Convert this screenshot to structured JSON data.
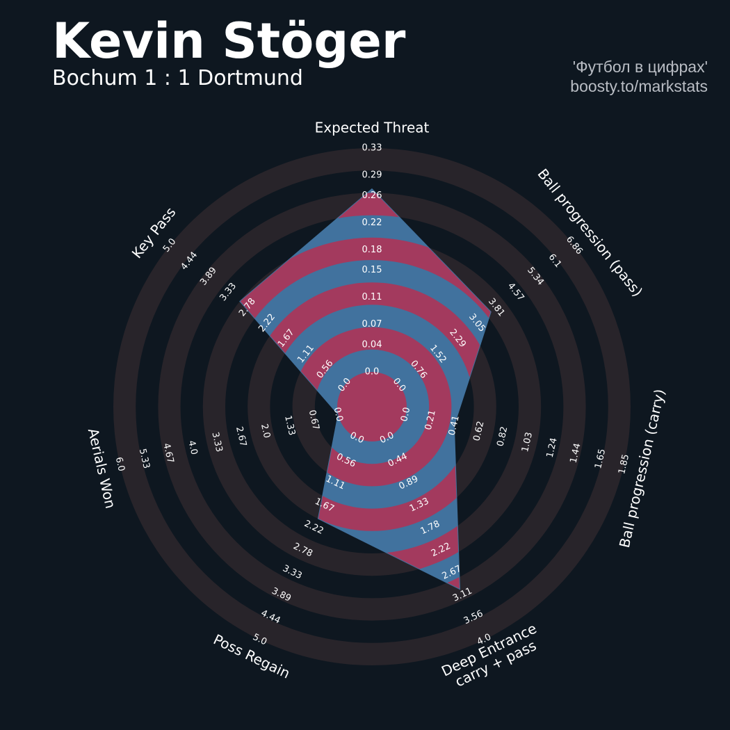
{
  "chart_data": {
    "type": "radar",
    "title": "Kevin Stöger",
    "subtitle": "Bochum 1 : 1 Dortmund",
    "credits": [
      "'Футбол в цифрах'",
      "boosty.to/markstats"
    ],
    "ring_colors": [
      "#28242a",
      "#0e1720"
    ],
    "series": [
      {
        "colors": [
          "#a33a5e",
          "#41729e"
        ],
        "values": [
          0.27,
          3.6,
          0.41,
          3.0,
          2.0,
          0,
          3.0
        ]
      }
    ],
    "axes": [
      {
        "name": "Expected Threat",
        "lim": [
          0,
          0.33
        ],
        "ticks": [
          {
            "value": 0,
            "label": "0.0"
          },
          0.04,
          0.07,
          0.11,
          0.15,
          0.18,
          0.22,
          0.26,
          0.29,
          0.33
        ]
      },
      {
        "name": "Ball progression (pass)",
        "lim": [
          0,
          6.86
        ],
        "ticks": [
          {
            "value": 0,
            "label": "0.0"
          },
          0.76,
          1.52,
          2.29,
          3.05,
          3.81,
          4.57,
          5.34,
          6.1,
          6.86
        ]
      },
      {
        "name": "Ball progression (carry)",
        "lim": [
          0,
          1.85
        ],
        "ticks": [
          {
            "value": 0,
            "label": "0.0"
          },
          0.21,
          0.41,
          0.62,
          0.82,
          1.03,
          1.24,
          1.44,
          1.65,
          1.85
        ]
      },
      {
        "name": "Deep Entrance\ncarry + pass",
        "lim": [
          0,
          4
        ],
        "ticks": [
          {
            "value": 0,
            "label": "0.0"
          },
          0.44,
          0.89,
          1.33,
          1.78,
          2.22,
          2.67,
          3.11,
          3.56,
          {
            "value": 4,
            "label": "4.0"
          }
        ]
      },
      {
        "name": "Poss Regain",
        "lim": [
          0,
          5
        ],
        "ticks": [
          {
            "value": 0,
            "label": "0.0"
          },
          0.56,
          1.11,
          1.67,
          2.22,
          2.78,
          3.33,
          3.89,
          4.44,
          {
            "value": 5,
            "label": "5.0"
          }
        ]
      },
      {
        "name": "Aerials Won",
        "lim": [
          0,
          6
        ],
        "ticks": [
          {
            "value": 0,
            "label": "0.0"
          },
          0.67,
          1.33,
          {
            "value": 2,
            "label": "2.0"
          },
          2.67,
          3.33,
          {
            "value": 4,
            "label": "4.0"
          },
          4.67,
          5.33,
          {
            "value": 6,
            "label": "6.0"
          }
        ]
      },
      {
        "name": "Key Pass",
        "lim": [
          0,
          5
        ],
        "ticks": [
          {
            "value": 0,
            "label": "0.0"
          },
          0.56,
          1.11,
          1.67,
          2.22,
          2.78,
          3.33,
          3.89,
          4.44,
          {
            "value": 5,
            "label": "5.0"
          }
        ]
      }
    ]
  }
}
